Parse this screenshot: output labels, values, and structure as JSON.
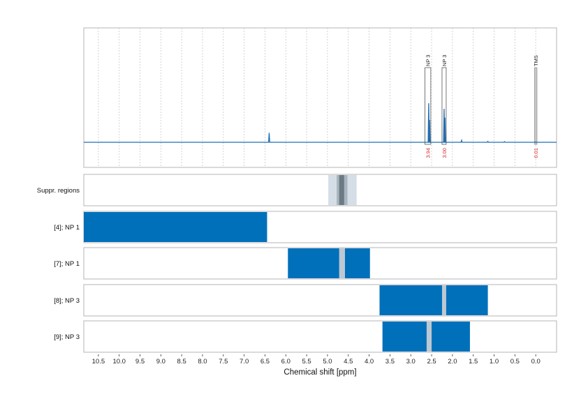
{
  "chart_data": {
    "type": "line",
    "xlabel": "Chemical shift [ppm]",
    "x_range": [
      10.85,
      -0.5
    ],
    "x_reversed": true,
    "x_ticks": [
      "10.5",
      "10.0",
      "9.5",
      "9.0",
      "8.5",
      "8.0",
      "7.5",
      "7.0",
      "6.5",
      "6.0",
      "5.5",
      "5.0",
      "4.5",
      "4.0",
      "3.5",
      "3.0",
      "2.5",
      "2.0",
      "1.5",
      "1.0",
      "0.5",
      "0.0"
    ],
    "grid": true,
    "spectrum": {
      "color": "#1f6fb4",
      "baseline": 0,
      "y_range": [
        -0.25,
        1.0
      ],
      "peaks": [
        {
          "x": 6.4,
          "height": 0.085
        },
        {
          "x": 2.57,
          "height": 0.35
        },
        {
          "x": 2.55,
          "height": 0.2
        },
        {
          "x": 2.2,
          "height": 0.3
        },
        {
          "x": 2.18,
          "height": 0.22
        },
        {
          "x": 1.78,
          "height": 0.018
        },
        {
          "x": 1.15,
          "height": 0.008
        },
        {
          "x": 0.75,
          "height": 0.006
        },
        {
          "x": 0.0,
          "height": 0.004
        }
      ]
    },
    "annotations": [
      {
        "label": "NP 3",
        "x_start": 2.66,
        "x_end": 2.52,
        "integral": "3.94"
      },
      {
        "label": "NP 3",
        "x_start": 2.25,
        "x_end": 2.15,
        "integral": "3.00"
      },
      {
        "label": "TMS",
        "x_start": 0.03,
        "x_end": -0.03,
        "integral": "0.01"
      }
    ],
    "tracks": [
      {
        "label": "Suppr. regions",
        "bars": [
          {
            "x_start": 4.98,
            "x_end": 4.3,
            "color": "#d5dee6"
          },
          {
            "x_start": 4.78,
            "x_end": 4.52,
            "color": "#a9b6c0"
          },
          {
            "x_start": 4.72,
            "x_end": 4.6,
            "color": "#6c7a84"
          }
        ]
      },
      {
        "label": "[4]; NP 1",
        "bars": [
          {
            "x_start": 10.85,
            "x_end": 6.45,
            "color": "#0070bb"
          }
        ]
      },
      {
        "label": "[7]; NP 1",
        "bars": [
          {
            "x_start": 5.95,
            "x_end": 3.98,
            "color": "#0070bb"
          },
          {
            "x_start": 4.72,
            "x_end": 4.58,
            "color": "#bcc8d2"
          }
        ]
      },
      {
        "label": "[8]; NP 3",
        "bars": [
          {
            "x_start": 3.75,
            "x_end": 1.15,
            "color": "#0070bb"
          },
          {
            "x_start": 2.25,
            "x_end": 2.15,
            "color": "#bcc8d2"
          }
        ]
      },
      {
        "label": "[9]; NP 3",
        "bars": [
          {
            "x_start": 3.68,
            "x_end": 1.58,
            "color": "#0070bb"
          },
          {
            "x_start": 2.62,
            "x_end": 2.5,
            "color": "#bcc8d2"
          }
        ]
      }
    ]
  }
}
